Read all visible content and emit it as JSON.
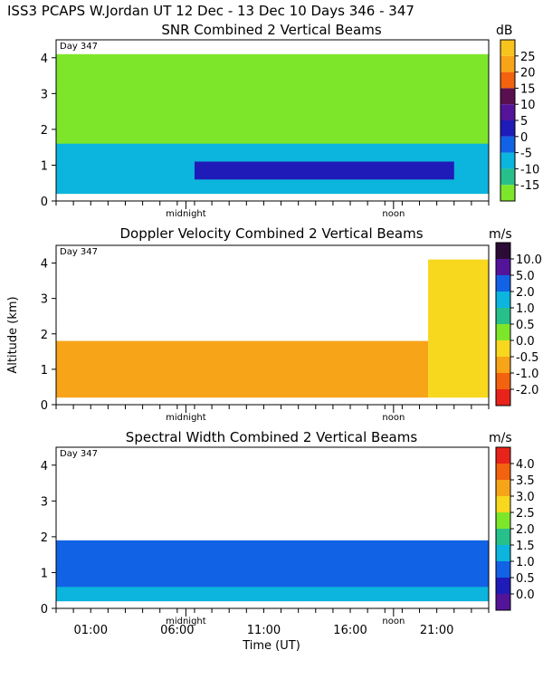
{
  "header": "ISS3 PCAPS W.Jordan UT  12 Dec - 13 Dec 10 Days 346 - 347",
  "chart_data": [
    {
      "type": "heatmap",
      "title": "SNR Combined 2 Vertical Beams",
      "day_label": "Day 347",
      "unit": "dB",
      "ylim": [
        0,
        4.5
      ],
      "yticks": [
        0,
        1,
        2,
        3,
        4
      ],
      "xlim": [
        -1,
        24
      ],
      "x_marker_labels": [
        {
          "x": 6.5,
          "label": "midnight"
        },
        {
          "x": 18.5,
          "label": "noon"
        }
      ],
      "colorbar": {
        "levels": [
          -15,
          -10,
          -5,
          0,
          5,
          10,
          15,
          20,
          25
        ],
        "colors": [
          "#7ee62a",
          "#27c08a",
          "#0bb5dd",
          "#1262e6",
          "#1f1bb8",
          "#54149a",
          "#58104f",
          "#f2620f",
          "#f7a418",
          "#f7c31c"
        ]
      },
      "layers": [
        {
          "name": "background",
          "x": [
            -1,
            24
          ],
          "y": [
            0.2,
            4.1
          ],
          "color": "#7ee62a"
        },
        {
          "name": "boundary layer",
          "x": [
            -1,
            24
          ],
          "y": [
            0.2,
            1.6
          ],
          "color": "#0bb5dd"
        },
        {
          "name": "strong layer",
          "x": [
            7,
            22
          ],
          "y": [
            0.6,
            1.1
          ],
          "color": "#1f1bb8"
        }
      ]
    },
    {
      "type": "heatmap",
      "title": "Doppler Velocity Combined 2 Vertical Beams",
      "day_label": "Day 347",
      "unit": "m/s",
      "ylim": [
        0,
        4.5
      ],
      "yticks": [
        0,
        1,
        2,
        3,
        4
      ],
      "xlim": [
        -1,
        24
      ],
      "x_marker_labels": [
        {
          "x": 6.5,
          "label": "midnight"
        },
        {
          "x": 18.5,
          "label": "noon"
        }
      ],
      "colorbar": {
        "levels": [
          -2.0,
          -1.0,
          -0.5,
          0.0,
          0.5,
          1.0,
          2.0,
          5.0,
          10.0
        ],
        "colors": [
          "#e8231b",
          "#f2620f",
          "#f7a418",
          "#f8d71f",
          "#7ee62a",
          "#27c08a",
          "#0bb5dd",
          "#1262e6",
          "#54149a",
          "#2b0c36"
        ]
      },
      "layers": [
        {
          "name": "boundary layer",
          "x": [
            -1,
            20.5
          ],
          "y": [
            0.2,
            1.8
          ],
          "color": "#f7a418"
        },
        {
          "name": "upper region",
          "x": [
            20.5,
            24
          ],
          "y": [
            0.2,
            4.1
          ],
          "color": "#f8d71f"
        }
      ]
    },
    {
      "type": "heatmap",
      "title": "Spectral Width Combined 2 Vertical Beams",
      "day_label": "Day 347",
      "unit": "m/s",
      "ylim": [
        0,
        4.5
      ],
      "yticks": [
        0,
        1,
        2,
        3,
        4
      ],
      "xlim": [
        -1,
        24
      ],
      "xticks": [
        1,
        6,
        11,
        16,
        21
      ],
      "xtick_labels": [
        "01:00",
        "06:00",
        "11:00",
        "16:00",
        "21:00"
      ],
      "x_marker_labels": [
        {
          "x": 6.5,
          "label": "midnight"
        },
        {
          "x": 18.5,
          "label": "noon"
        }
      ],
      "colorbar": {
        "levels": [
          0.0,
          0.5,
          1.0,
          1.5,
          2.0,
          2.5,
          3.0,
          3.5,
          4.0
        ],
        "colors": [
          "#54149a",
          "#1f1bb8",
          "#1262e6",
          "#0bb5dd",
          "#27c08a",
          "#7ee62a",
          "#f8d71f",
          "#f7a418",
          "#f2620f",
          "#e8231b"
        ]
      },
      "layers": [
        {
          "name": "boundary layer",
          "x": [
            -1,
            24
          ],
          "y": [
            0.2,
            1.9
          ],
          "color": "#1262e6"
        },
        {
          "name": "surface layer",
          "x": [
            -1,
            24
          ],
          "y": [
            0.2,
            0.6
          ],
          "color": "#0bb5dd"
        }
      ]
    }
  ],
  "axes": {
    "ylabel": "Altitude (km)",
    "xlabel": "Time (UT)"
  }
}
